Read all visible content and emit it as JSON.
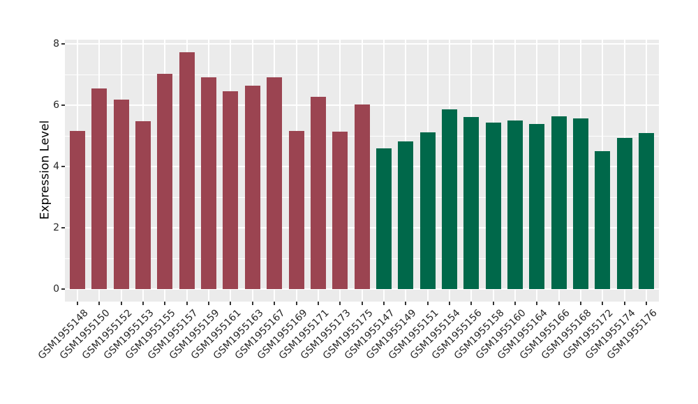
{
  "chart_data": {
    "type": "bar",
    "title": "",
    "ylabel": "Expression Level",
    "xlabel": "",
    "ylim": [
      0,
      8
    ],
    "yticks": [
      0,
      2,
      4,
      6,
      8
    ],
    "yticks_minor": [
      1,
      3,
      5,
      7
    ],
    "grid": "on",
    "legend_position": "none",
    "panel_background": "#EBEBEB",
    "grid_color": "#FFFFFF",
    "tick_mark_color": "#333333",
    "axis_text_color": "#262626",
    "axis_title_color": "#000000",
    "group_colors": {
      "maroon": "#9B4451",
      "green": "#00684A"
    },
    "categories": [
      "GSM1955148",
      "GSM1955150",
      "GSM1955152",
      "GSM1955153",
      "GSM1955155",
      "GSM1955157",
      "GSM1955159",
      "GSM1955161",
      "GSM1955163",
      "GSM1955167",
      "GSM1955169",
      "GSM1955171",
      "GSM1955173",
      "GSM1955175",
      "GSM1955147",
      "GSM1955149",
      "GSM1955151",
      "GSM1955154",
      "GSM1955156",
      "GSM1955158",
      "GSM1955160",
      "GSM1955164",
      "GSM1955166",
      "GSM1955168",
      "GSM1955172",
      "GSM1955174",
      "GSM1955176"
    ],
    "values": [
      5.15,
      6.55,
      6.18,
      5.48,
      7.03,
      7.73,
      6.92,
      6.45,
      6.63,
      6.92,
      5.16,
      6.28,
      5.13,
      6.03,
      4.59,
      4.81,
      5.12,
      5.87,
      5.61,
      5.44,
      5.51,
      5.39,
      5.63,
      5.57,
      4.49,
      4.94,
      5.09
    ],
    "groups": [
      "maroon",
      "maroon",
      "maroon",
      "maroon",
      "maroon",
      "maroon",
      "maroon",
      "maroon",
      "maroon",
      "maroon",
      "maroon",
      "maroon",
      "maroon",
      "maroon",
      "green",
      "green",
      "green",
      "green",
      "green",
      "green",
      "green",
      "green",
      "green",
      "green",
      "green",
      "green",
      "green"
    ]
  }
}
